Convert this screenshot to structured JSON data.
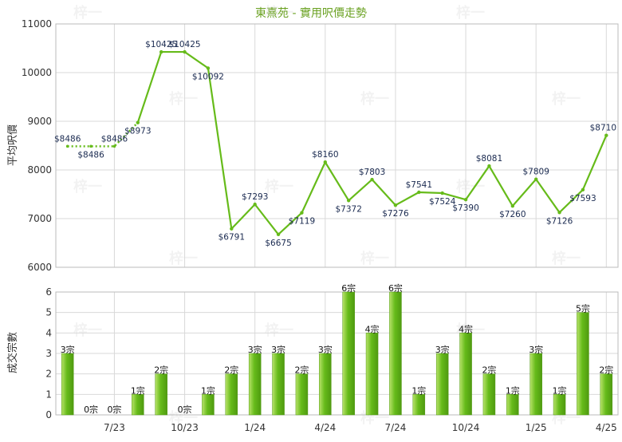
{
  "title": "東熹苑 - 實用呎價走勢",
  "watermark": "梓一",
  "colors": {
    "line": "#66bb1a",
    "bar_light": "#b8e26a",
    "bar_dark": "#4f9a10",
    "grid": "#d9d9d9",
    "title": "#6aa121",
    "axis_text": "#333333"
  },
  "chart_data": [
    {
      "type": "line",
      "ylabel": "平均呎價",
      "ylim": [
        6000,
        11000
      ],
      "yticks": [
        "6000",
        "7000",
        "8000",
        "9000",
        "10000",
        "11000"
      ],
      "grid": true,
      "values": [
        8486,
        8486,
        8486,
        8973,
        10425,
        10425,
        10092,
        6791,
        7293,
        6675,
        7119,
        8160,
        7372,
        7803,
        7276,
        7541,
        7524,
        7390,
        8081,
        7260,
        7809,
        7126,
        7593,
        8710
      ],
      "labels": [
        "$8486",
        "$8486",
        "$8486",
        "$8973",
        "$10425",
        "$10425",
        "$10092",
        "$6791",
        "$7293",
        "$6675",
        "$7119",
        "$8160",
        "$7372",
        "$7803",
        "$7276",
        "$7541",
        "$7524",
        "$7390",
        "$8081",
        "$7260",
        "$7809",
        "$7126",
        "$7593",
        "$8710"
      ],
      "dotted_until_index": 3
    },
    {
      "type": "bar",
      "ylabel": "成交宗數",
      "ylim": [
        0,
        6
      ],
      "yticks": [
        "0",
        "1",
        "2",
        "3",
        "4",
        "5",
        "6"
      ],
      "grid": true,
      "values": [
        3,
        0,
        0,
        1,
        2,
        0,
        1,
        2,
        3,
        3,
        2,
        3,
        6,
        4,
        6,
        1,
        3,
        4,
        2,
        1,
        3,
        1,
        5,
        2
      ],
      "labels": [
        "3宗",
        "0宗",
        "0宗",
        "1宗",
        "2宗",
        "0宗",
        "1宗",
        "2宗",
        "3宗",
        "3宗",
        "2宗",
        "3宗",
        "6宗",
        "4宗",
        "6宗",
        "1宗",
        "3宗",
        "4宗",
        "2宗",
        "1宗",
        "3宗",
        "1宗",
        "5宗",
        "2宗"
      ],
      "xticks": [
        {
          "label": "7/23",
          "index": 2
        },
        {
          "label": "10/23",
          "index": 5
        },
        {
          "label": "1/24",
          "index": 8
        },
        {
          "label": "4/24",
          "index": 11
        },
        {
          "label": "7/24",
          "index": 14
        },
        {
          "label": "10/24",
          "index": 17
        },
        {
          "label": "1/25",
          "index": 20
        },
        {
          "label": "4/25",
          "index": 23
        }
      ]
    }
  ]
}
